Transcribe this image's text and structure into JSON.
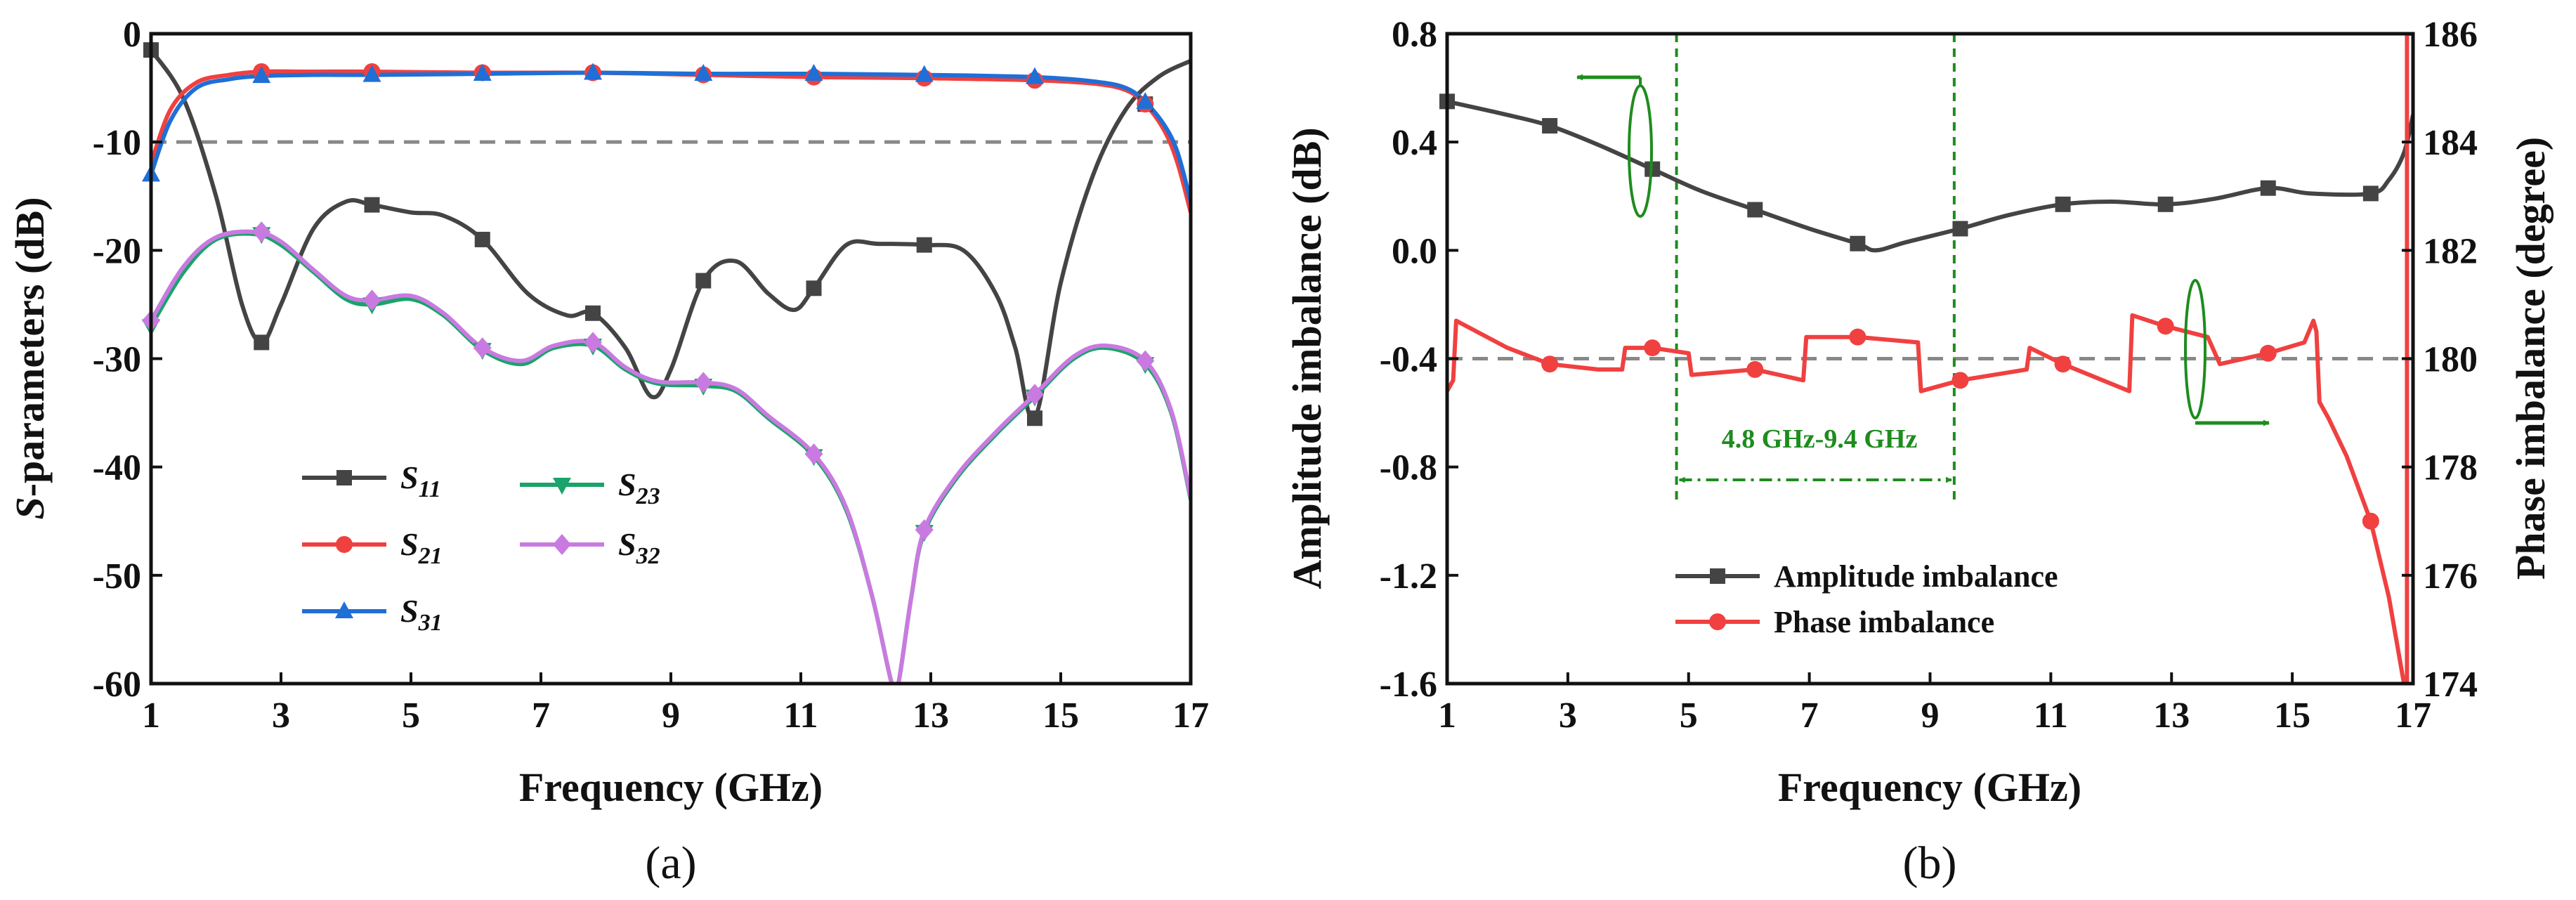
{
  "chart_data": [
    {
      "panel": "(a)",
      "type": "line",
      "xlabel": "Frequency (GHz)",
      "ylabel": "S-parameters (dB)",
      "ylabel_italic_prefix": "S",
      "ylabel_suffix": "-parameters (dB)",
      "xlim": [
        1,
        17
      ],
      "ylim": [
        -60,
        0
      ],
      "xticks": [
        1,
        3,
        5,
        7,
        9,
        11,
        13,
        15,
        17
      ],
      "yticks": [
        -60,
        -50,
        -40,
        -30,
        -20,
        -10,
        0
      ],
      "reference_line": -10,
      "series": [
        {
          "name": "S11",
          "base": "S",
          "sub": "11",
          "color": "#444444",
          "marker": "square",
          "x": [
            1,
            1.5,
            2.0,
            2.4,
            2.7,
            3.0,
            3.5,
            4.0,
            4.4,
            5.0,
            5.5,
            6.1,
            6.8,
            7.4,
            7.8,
            8.3,
            8.7,
            9.0,
            9.5,
            10.0,
            10.5,
            10.9,
            11.2,
            11.7,
            12.2,
            12.9,
            13.5,
            14.0,
            14.3,
            14.6,
            15.0,
            15.5,
            16.0,
            16.5,
            17.0
          ],
          "y": [
            -1.5,
            -6,
            -15,
            -25,
            -28.5,
            -25,
            -18,
            -15.5,
            -15.8,
            -16.5,
            -16.8,
            -19,
            -24,
            -26,
            -25.8,
            -29,
            -33.5,
            -31,
            -22.8,
            -21,
            -24,
            -25.5,
            -23.5,
            -19.5,
            -19.4,
            -19.5,
            -20,
            -24,
            -29,
            -35.5,
            -23,
            -13,
            -7,
            -4,
            -2.5
          ],
          "markers_x": [
            1,
            2.7,
            4.4,
            6.1,
            7.8,
            9.5,
            11.2,
            12.9,
            14.6,
            16.3
          ],
          "markers_y": [
            -1.5,
            -28.5,
            -15.8,
            -19,
            -25.8,
            -22.8,
            -23.5,
            -19.5,
            -35.5,
            -6.5
          ]
        },
        {
          "name": "S21",
          "base": "S",
          "sub": "21",
          "color": "#f04040",
          "marker": "circle",
          "x": [
            1,
            1.3,
            1.7,
            2.2,
            2.7,
            3.5,
            4.4,
            6.1,
            7.8,
            9.5,
            11.2,
            12.9,
            14.6,
            15.5,
            16.0,
            16.3,
            16.6,
            16.8,
            17.0
          ],
          "y": [
            -12,
            -7,
            -4.5,
            -3.8,
            -3.5,
            -3.5,
            -3.5,
            -3.6,
            -3.6,
            -3.8,
            -4.0,
            -4.1,
            -4.3,
            -4.6,
            -5.2,
            -6.5,
            -9,
            -12,
            -16.5
          ],
          "markers_x": [
            2.7,
            4.4,
            6.1,
            7.8,
            9.5,
            11.2,
            12.9,
            14.6,
            16.3
          ],
          "markers_y": [
            -3.5,
            -3.5,
            -3.6,
            -3.6,
            -3.8,
            -4.0,
            -4.1,
            -4.3,
            -6.5
          ]
        },
        {
          "name": "S31",
          "base": "S",
          "sub": "31",
          "color": "#1f6fd6",
          "marker": "triangle-up",
          "x": [
            1,
            1.3,
            1.7,
            2.2,
            2.7,
            3.5,
            4.4,
            6.1,
            7.8,
            9.5,
            11.2,
            12.9,
            14.6,
            15.5,
            16.0,
            16.3,
            16.6,
            16.8,
            17.0
          ],
          "y": [
            -13,
            -8,
            -5,
            -4.2,
            -3.9,
            -3.8,
            -3.8,
            -3.7,
            -3.6,
            -3.7,
            -3.7,
            -3.8,
            -4.0,
            -4.4,
            -5.0,
            -6.3,
            -8.5,
            -11,
            -15.5
          ],
          "markers_x": [
            1,
            2.7,
            4.4,
            6.1,
            7.8,
            9.5,
            11.2,
            12.9,
            14.6,
            16.3
          ],
          "markers_y": [
            -13,
            -3.9,
            -3.8,
            -3.7,
            -3.6,
            -3.7,
            -3.7,
            -3.8,
            -4.0,
            -6.3
          ]
        },
        {
          "name": "S23",
          "base": "S",
          "sub": "23",
          "color": "#1aa36a",
          "marker": "triangle-down",
          "x": [
            1,
            1.5,
            2.0,
            2.6,
            3.0,
            3.5,
            4.0,
            4.4,
            5.0,
            5.5,
            6.1,
            6.7,
            7.2,
            7.8,
            8.3,
            8.8,
            9.5,
            10.0,
            10.5,
            11.2,
            11.7,
            12.1,
            12.4,
            12.5,
            12.7,
            12.9,
            13.4,
            14.0,
            14.6,
            15.2,
            15.7,
            16.3,
            16.7,
            17.0
          ],
          "y": [
            -27,
            -22,
            -19,
            -18.5,
            -19.5,
            -22,
            -24.5,
            -25,
            -24.5,
            -26,
            -29.2,
            -30.5,
            -29,
            -28.8,
            -31,
            -32.3,
            -32.5,
            -33,
            -35.5,
            -39,
            -44,
            -52,
            -60,
            -60,
            -52,
            -46,
            -41,
            -37,
            -33.5,
            -30,
            -29,
            -30.5,
            -35,
            -43
          ],
          "markers_x": [
            1,
            2.7,
            4.4,
            6.1,
            7.8,
            9.5,
            11.2,
            12.9,
            14.6,
            16.3
          ],
          "markers_y": [
            -27,
            -18.5,
            -25,
            -29.2,
            -28.8,
            -32.5,
            -39,
            -46,
            -33.5,
            -30.5
          ]
        },
        {
          "name": "S32",
          "base": "S",
          "sub": "32",
          "color": "#c97ae0",
          "marker": "diamond",
          "x": [
            1,
            1.5,
            2.0,
            2.6,
            3.0,
            3.5,
            4.0,
            4.4,
            5.0,
            5.5,
            6.1,
            6.7,
            7.2,
            7.8,
            8.3,
            8.8,
            9.5,
            10.0,
            10.5,
            11.2,
            11.7,
            12.1,
            12.4,
            12.5,
            12.7,
            12.9,
            13.4,
            14.0,
            14.6,
            15.2,
            15.7,
            16.3,
            16.7,
            17.0
          ],
          "y": [
            -26.5,
            -21.5,
            -18.8,
            -18.3,
            -19.2,
            -21.8,
            -24.2,
            -24.6,
            -24.2,
            -25.8,
            -29,
            -30.2,
            -28.8,
            -28.5,
            -30.8,
            -32.1,
            -32.2,
            -32.8,
            -35.3,
            -38.8,
            -43.8,
            -52,
            -60,
            -60,
            -52,
            -45.8,
            -40.8,
            -36.8,
            -33.3,
            -29.8,
            -28.8,
            -30.2,
            -34.8,
            -42.8
          ],
          "markers_x": [
            1,
            2.7,
            4.4,
            6.1,
            7.8,
            9.5,
            11.2,
            12.9,
            14.6,
            16.3
          ],
          "markers_y": [
            -26.5,
            -18.3,
            -24.6,
            -29,
            -28.5,
            -32.2,
            -38.8,
            -45.8,
            -33.3,
            -30.2
          ]
        }
      ]
    },
    {
      "panel": "(b)",
      "type": "line",
      "xlabel": "Frequency (GHz)",
      "ylabel": "Amplitude imbalance (dB)",
      "ylabel_right": "Phase imbalance (degree)",
      "xlim": [
        1,
        17
      ],
      "ylim": [
        -1.6,
        0.8
      ],
      "ylim_right": [
        174,
        186
      ],
      "xticks": [
        1,
        3,
        5,
        7,
        9,
        11,
        13,
        15,
        17
      ],
      "yticks": [
        "-1.6",
        "-1.2",
        "-0.8",
        "-0.4",
        "0.0",
        "0.4",
        "0.8"
      ],
      "yticks_right": [
        174,
        176,
        178,
        180,
        182,
        184,
        186
      ],
      "reference_line_right": 180,
      "band_lines": [
        4.8,
        9.4
      ],
      "band_label": "4.8 GHz-9.4 GHz",
      "series": [
        {
          "name": "Amplitude imbalance",
          "axis": "left",
          "color": "#444444",
          "marker": "square",
          "x": [
            1,
            2.0,
            2.7,
            3.5,
            4.4,
            5.2,
            6.1,
            7.0,
            7.8,
            8.1,
            8.6,
            9.5,
            10.3,
            11.2,
            12.0,
            12.9,
            13.7,
            14.6,
            15.3,
            16.3,
            16.6,
            16.85,
            17.0
          ],
          "y": [
            0.55,
            0.5,
            0.46,
            0.39,
            0.3,
            0.22,
            0.15,
            0.08,
            0.025,
            0.0,
            0.03,
            0.08,
            0.13,
            0.17,
            0.18,
            0.17,
            0.19,
            0.23,
            0.21,
            0.21,
            0.26,
            0.36,
            0.5
          ],
          "markers_x": [
            1,
            2.7,
            4.4,
            6.1,
            7.8,
            9.5,
            11.2,
            12.9,
            14.6,
            16.3
          ],
          "markers_y": [
            0.55,
            0.46,
            0.3,
            0.15,
            0.025,
            0.08,
            0.17,
            0.17,
            0.23,
            0.21
          ]
        },
        {
          "name": "Phase imbalance",
          "axis": "right",
          "color": "#f04040",
          "marker": "circle",
          "x": [
            1,
            1.1,
            1.15,
            2.0,
            2.7,
            3.5,
            3.9,
            3.95,
            4.4,
            5.0,
            5.05,
            6.1,
            6.9,
            6.95,
            7.8,
            8.8,
            8.85,
            9.5,
            10.6,
            10.65,
            11.2,
            12.3,
            12.35,
            12.9,
            13.6,
            13.8,
            14.6,
            15.2,
            15.35,
            15.4,
            15.45,
            15.6,
            15.9,
            16.3,
            16.6,
            16.85,
            16.9,
            16.9,
            17.0
          ],
          "y": [
            179.4,
            179.6,
            180.7,
            180.2,
            179.9,
            179.8,
            179.8,
            180.2,
            180.2,
            180.1,
            179.7,
            179.8,
            179.6,
            180.4,
            180.4,
            180.3,
            179.4,
            179.6,
            179.8,
            180.2,
            179.9,
            179.4,
            180.8,
            180.6,
            180.4,
            179.9,
            180.1,
            180.3,
            180.7,
            180.5,
            179.2,
            178.9,
            178.2,
            177,
            175.6,
            174,
            174,
            186,
            186
          ],
          "markers_x": [
            2.7,
            4.4,
            6.1,
            7.8,
            9.5,
            11.2,
            12.9,
            14.6,
            16.3
          ],
          "markers_y": [
            179.9,
            180.2,
            179.8,
            180.4,
            179.6,
            179.9,
            180.6,
            180.1,
            177
          ]
        }
      ]
    }
  ]
}
